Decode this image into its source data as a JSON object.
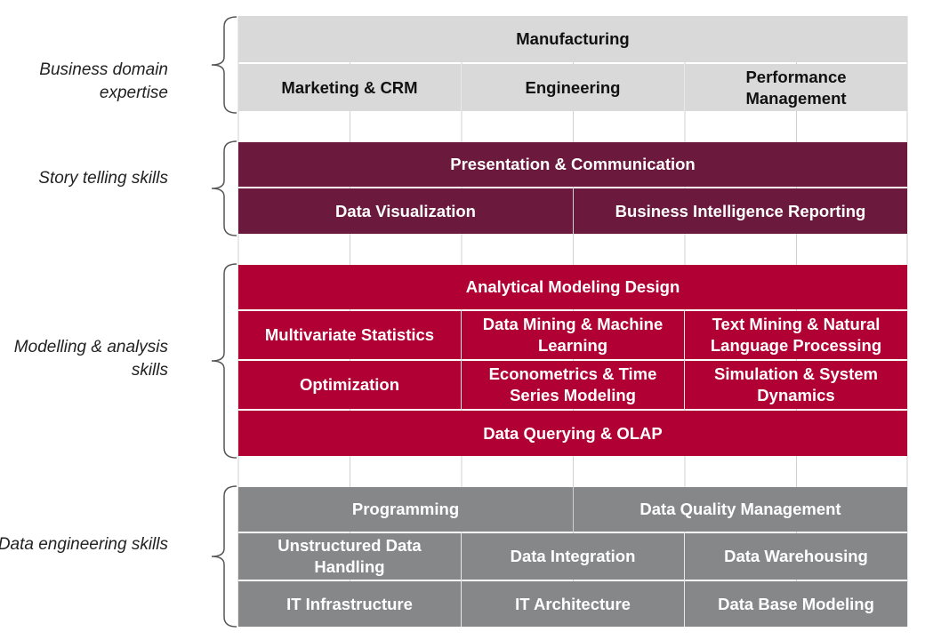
{
  "colors": {
    "business": "#d9d9d9",
    "story": "#6b1a3e",
    "modelling": "#b10034",
    "engineering": "#858789"
  },
  "categories": {
    "business": "Business domain expertise",
    "story": "Story telling skills",
    "modelling": "Modelling & analysis skills",
    "engineering": "Data engineering skills"
  },
  "business": {
    "manufacturing": "Manufacturing",
    "marketing": "Marketing & CRM",
    "engineering": "Engineering",
    "performance": "Performance Management"
  },
  "story": {
    "presentation": "Presentation & Communication",
    "visualization": "Data Visualization",
    "bi_reporting": "Business Intelligence Reporting"
  },
  "modelling": {
    "design": "Analytical Modeling Design",
    "multivariate": "Multivariate Statistics",
    "data_mining": "Data Mining & Machine Learning",
    "text_mining": "Text Mining & Natural Language Processing",
    "optimization": "Optimization",
    "econometrics": "Econometrics & Time Series Modeling",
    "simulation": "Simulation & System Dynamics",
    "querying": "Data Querying & OLAP"
  },
  "engineering": {
    "programming": "Programming",
    "quality": "Data Quality Management",
    "unstructured": "Unstructured Data Handling",
    "integration": "Data Integration",
    "warehousing": "Data Warehousing",
    "infrastructure": "IT Infrastructure",
    "architecture": "IT Architecture",
    "database": "Data Base Modeling"
  }
}
